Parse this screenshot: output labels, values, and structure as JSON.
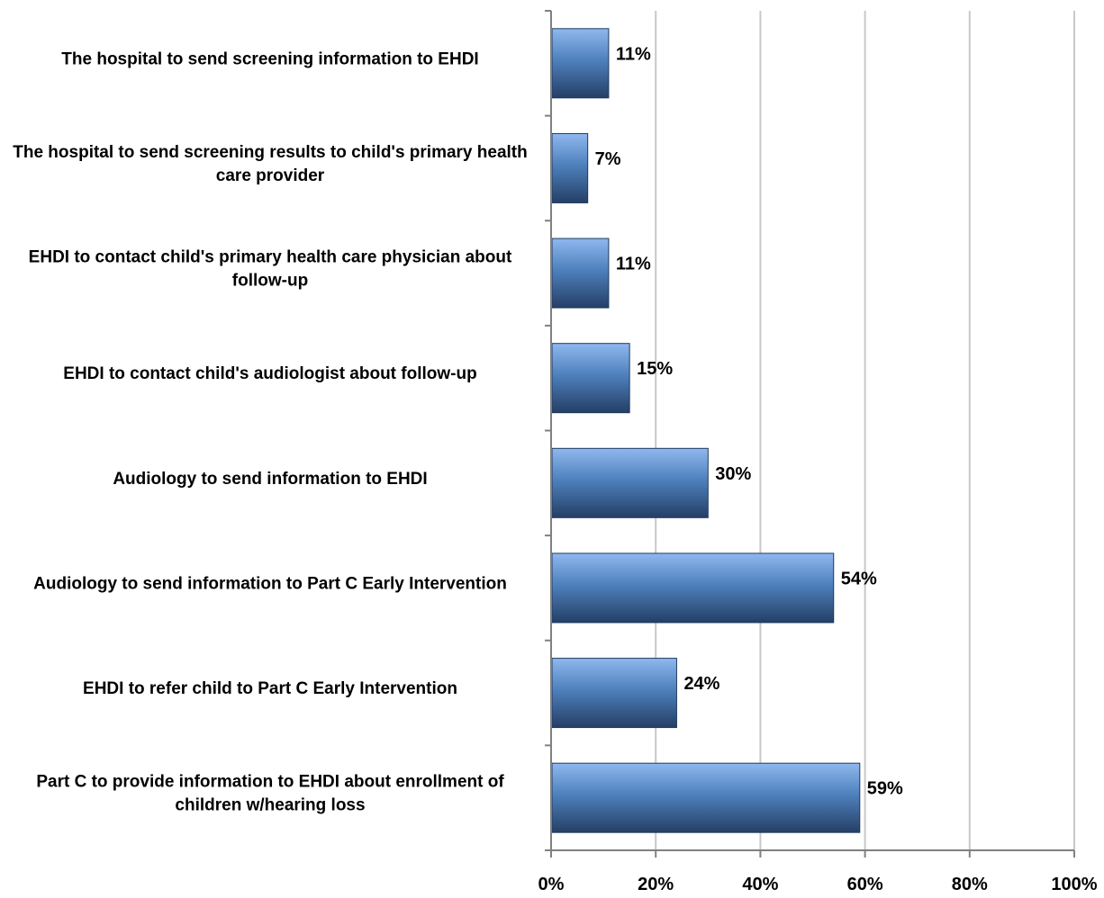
{
  "chart_data": {
    "type": "bar",
    "orientation": "horizontal",
    "categories": [
      [
        "The hospital to send screening information to EHDI"
      ],
      [
        "The hospital to send screening results to child's primary health",
        "care provider"
      ],
      [
        "EHDI to contact child's primary health care physician about",
        "follow-up"
      ],
      [
        "EHDI to contact child's audiologist about follow-up"
      ],
      [
        "Audiology to send information to EHDI"
      ],
      [
        "Audiology to send information to Part C Early Intervention"
      ],
      [
        "EHDI to refer child to Part C Early Intervention"
      ],
      [
        "Part C to provide information to EHDI about enrollment of",
        "children w/hearing loss"
      ]
    ],
    "values": [
      11,
      7,
      11,
      15,
      30,
      54,
      24,
      59
    ],
    "data_labels": [
      "11%",
      "7%",
      "11%",
      "15%",
      "30%",
      "54%",
      "24%",
      "59%"
    ],
    "xlim": [
      0,
      100
    ],
    "x_ticks": [
      0,
      20,
      40,
      60,
      80,
      100
    ],
    "x_tick_labels": [
      "0%",
      "20%",
      "40%",
      "60%",
      "80%",
      "100%"
    ],
    "grid": true,
    "title": "",
    "xlabel": "",
    "ylabel": "",
    "bar_color": "#4f81bd",
    "bar_color_light": "#8fb8ee",
    "bar_color_dark": "#243f66",
    "grid_color": "#c8c8c8",
    "axis_color": "#808080"
  }
}
